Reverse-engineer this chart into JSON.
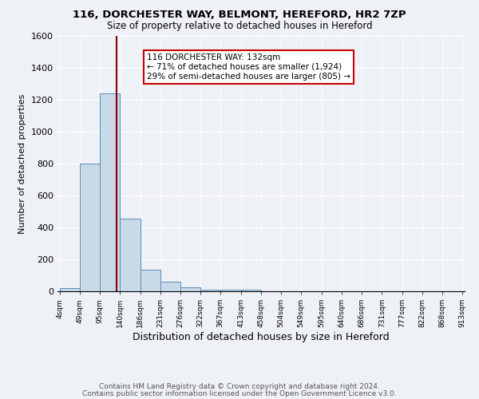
{
  "title_line1": "116, DORCHESTER WAY, BELMONT, HEREFORD, HR2 7ZP",
  "title_line2": "Size of property relative to detached houses in Hereford",
  "xlabel": "Distribution of detached houses by size in Hereford",
  "ylabel": "Number of detached properties",
  "bar_edges": [
    4,
    49,
    95,
    140,
    186,
    231,
    276,
    322,
    367,
    413,
    458,
    504,
    549,
    595,
    640,
    686,
    731,
    777,
    822,
    868,
    913
  ],
  "bar_heights": [
    20,
    800,
    1240,
    455,
    135,
    60,
    25,
    12,
    8,
    8,
    0,
    0,
    0,
    0,
    0,
    0,
    0,
    0,
    0,
    0
  ],
  "bar_color": "#c8d9e8",
  "bar_edge_color": "#5b8db8",
  "property_size": 132,
  "vline_x": 132,
  "vline_color": "#8b0000",
  "annotation_text": "116 DORCHESTER WAY: 132sqm\n← 71% of detached houses are smaller (1,924)\n29% of semi-detached houses are larger (805) →",
  "annotation_box_color": "white",
  "annotation_border_color": "#cc0000",
  "ylim": [
    0,
    1600
  ],
  "yticks": [
    0,
    200,
    400,
    600,
    800,
    1000,
    1200,
    1400,
    1600
  ],
  "footer_line1": "Contains HM Land Registry data © Crown copyright and database right 2024.",
  "footer_line2": "Contains public sector information licensed under the Open Government Licence v3.0.",
  "background_color": "#eef2f7",
  "plot_bg_color": "#eef2f7"
}
